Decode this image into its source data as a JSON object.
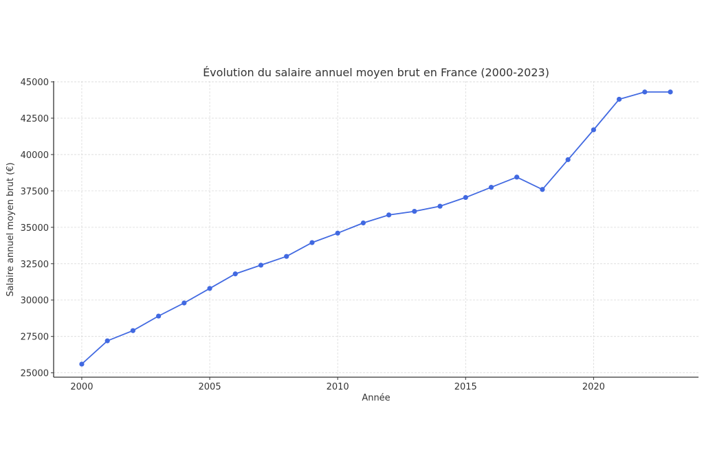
{
  "chart_data": {
    "type": "line",
    "title": "Évolution du salaire annuel moyen brut en France (2000-2023)",
    "xlabel": "Année",
    "ylabel": "Salaire annuel moyen brut (€)",
    "x": [
      2000,
      2001,
      2002,
      2003,
      2004,
      2005,
      2006,
      2007,
      2008,
      2009,
      2010,
      2011,
      2012,
      2013,
      2014,
      2015,
      2016,
      2017,
      2018,
      2019,
      2020,
      2021,
      2022,
      2023
    ],
    "series": [
      {
        "name": "Salaire annuel moyen brut",
        "color": "#4169e1",
        "values": [
          25600,
          27200,
          27900,
          28900,
          29800,
          30800,
          31800,
          32400,
          33000,
          33950,
          34600,
          35300,
          35850,
          36100,
          36450,
          37050,
          37750,
          38450,
          37600,
          39650,
          41700,
          43800,
          44300,
          44300
        ]
      }
    ],
    "xticks": [
      2000,
      2005,
      2010,
      2015,
      2020
    ],
    "yticks": [
      25000,
      27500,
      30000,
      32500,
      35000,
      37500,
      40000,
      42500,
      45000
    ],
    "xlim": [
      1998.9,
      2024.1
    ],
    "ylim": [
      24700,
      45050
    ],
    "grid": true,
    "legend": null
  }
}
